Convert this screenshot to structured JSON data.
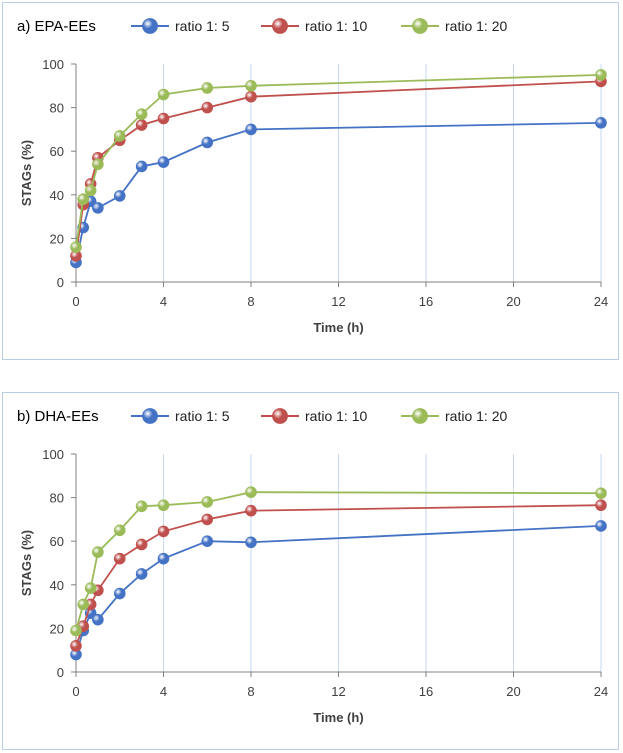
{
  "chart_data": [
    {
      "type": "line",
      "title": "a) EPA-EEs",
      "xlabel": "Time (h)",
      "ylabel": "STAGs (%)",
      "xlim": [
        0,
        24
      ],
      "ylim": [
        0,
        100
      ],
      "x_axis_scale": "piecewise: 0-8 linear, 8-24 compressed",
      "x_ticks": [
        0,
        4,
        8,
        12,
        16,
        20,
        24
      ],
      "y_ticks": [
        0,
        20,
        40,
        60,
        80,
        100
      ],
      "grid": "vertical",
      "legend_position": "top",
      "x": [
        0,
        0.33,
        0.67,
        1,
        2,
        3,
        4,
        6,
        8,
        24
      ],
      "series": [
        {
          "name": "ratio 1: 5",
          "color": "#4472c4",
          "values": [
            9,
            25,
            37,
            34,
            39.5,
            53,
            55,
            64,
            70,
            73
          ]
        },
        {
          "name": "ratio 1: 10",
          "color": "#c0504d",
          "values": [
            12,
            35.5,
            45,
            57,
            65,
            72,
            75,
            80,
            85,
            92
          ]
        },
        {
          "name": "ratio 1: 20",
          "color": "#9bbb59",
          "values": [
            16,
            38,
            42,
            54,
            67,
            77,
            86,
            89,
            90,
            95
          ]
        }
      ]
    },
    {
      "type": "line",
      "title": "b) DHA-EEs",
      "xlabel": "Time (h)",
      "ylabel": "STAGs (%)",
      "xlim": [
        0,
        24
      ],
      "ylim": [
        0,
        100
      ],
      "x_axis_scale": "piecewise: 0-8 linear, 8-24 compressed",
      "x_ticks": [
        0,
        4,
        8,
        12,
        16,
        20,
        24
      ],
      "y_ticks": [
        0,
        20,
        40,
        60,
        80,
        100
      ],
      "grid": "vertical",
      "legend_position": "top",
      "x": [
        0,
        0.33,
        0.67,
        1,
        2,
        3,
        4,
        6,
        8,
        24
      ],
      "series": [
        {
          "name": "ratio 1: 5",
          "color": "#4472c4",
          "values": [
            8,
            19,
            27,
            24,
            36,
            45,
            52,
            60,
            59.5,
            67
          ]
        },
        {
          "name": "ratio 1: 10",
          "color": "#c0504d",
          "values": [
            12,
            21,
            31,
            37.5,
            52,
            58.5,
            64.5,
            70,
            74,
            76.5
          ]
        },
        {
          "name": "ratio 1: 20",
          "color": "#9bbb59",
          "values": [
            19,
            31,
            38.5,
            55,
            65,
            76,
            76.5,
            78,
            82.5,
            82
          ]
        }
      ]
    }
  ]
}
